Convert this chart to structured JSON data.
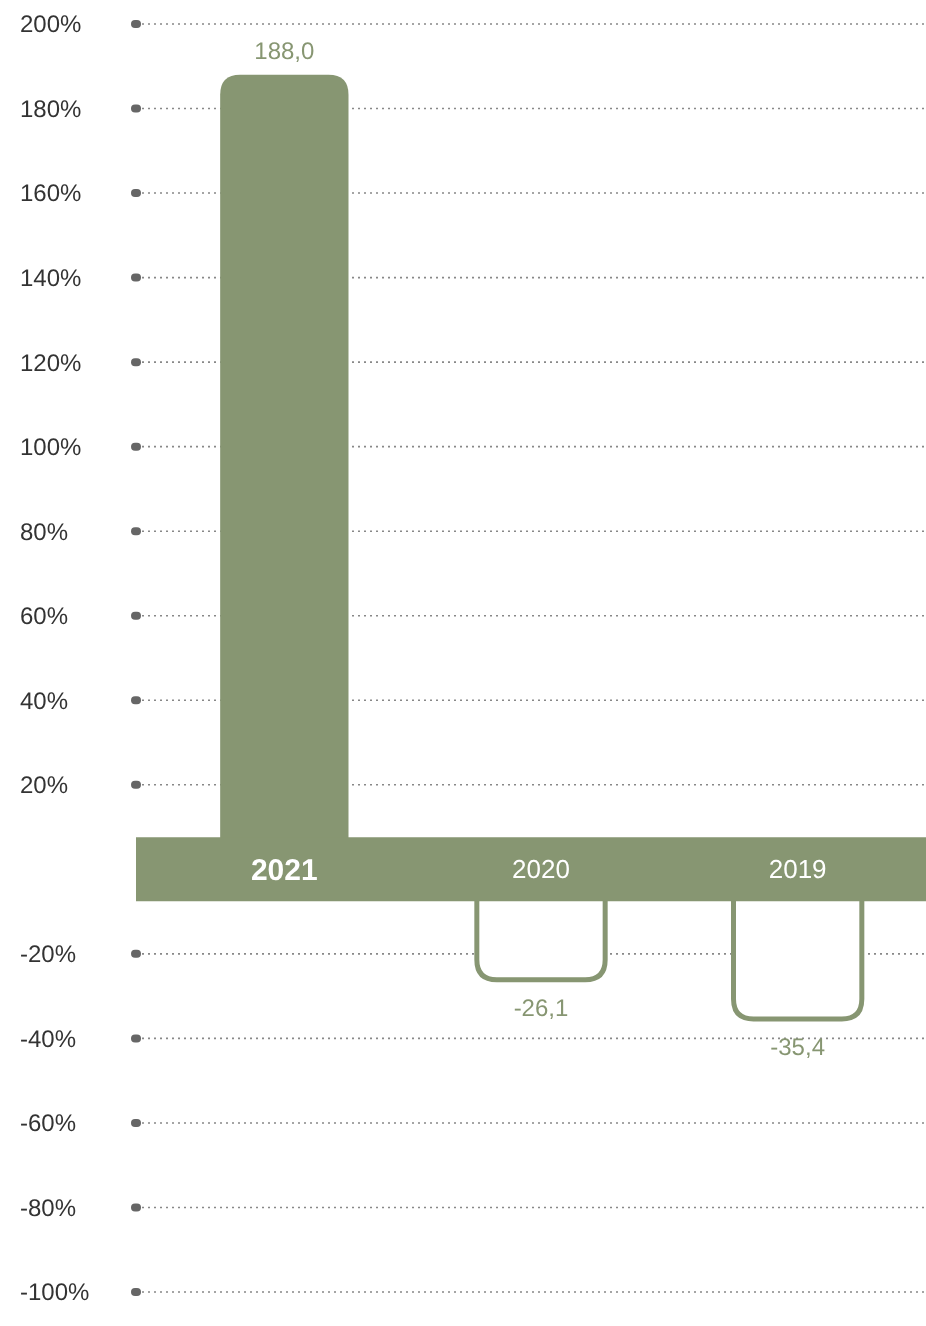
{
  "chart_data": {
    "type": "bar",
    "categories": [
      "2021",
      "2020",
      "2019"
    ],
    "values": [
      188.0,
      -26.1,
      -35.4
    ],
    "value_labels": [
      "188,0",
      "-26,1",
      "-35,4"
    ],
    "color": "#879672",
    "ylim": [
      -100,
      200
    ],
    "yticks": [
      {
        "value": -100,
        "label": "-100%"
      },
      {
        "value": -80,
        "label": "-80%"
      },
      {
        "value": -60,
        "label": "-60%"
      },
      {
        "value": -40,
        "label": "-40%"
      },
      {
        "value": -20,
        "label": "-20%"
      },
      {
        "value": 20,
        "label": "20%"
      },
      {
        "value": 40,
        "label": "40%"
      },
      {
        "value": 60,
        "label": "60%"
      },
      {
        "value": 80,
        "label": "80%"
      },
      {
        "value": 100,
        "label": "100%"
      },
      {
        "value": 120,
        "label": "120%"
      },
      {
        "value": 140,
        "label": "140%"
      },
      {
        "value": 160,
        "label": "160%"
      },
      {
        "value": 180,
        "label": "180%"
      },
      {
        "value": 200,
        "label": "200%"
      }
    ],
    "grid": "y"
  }
}
